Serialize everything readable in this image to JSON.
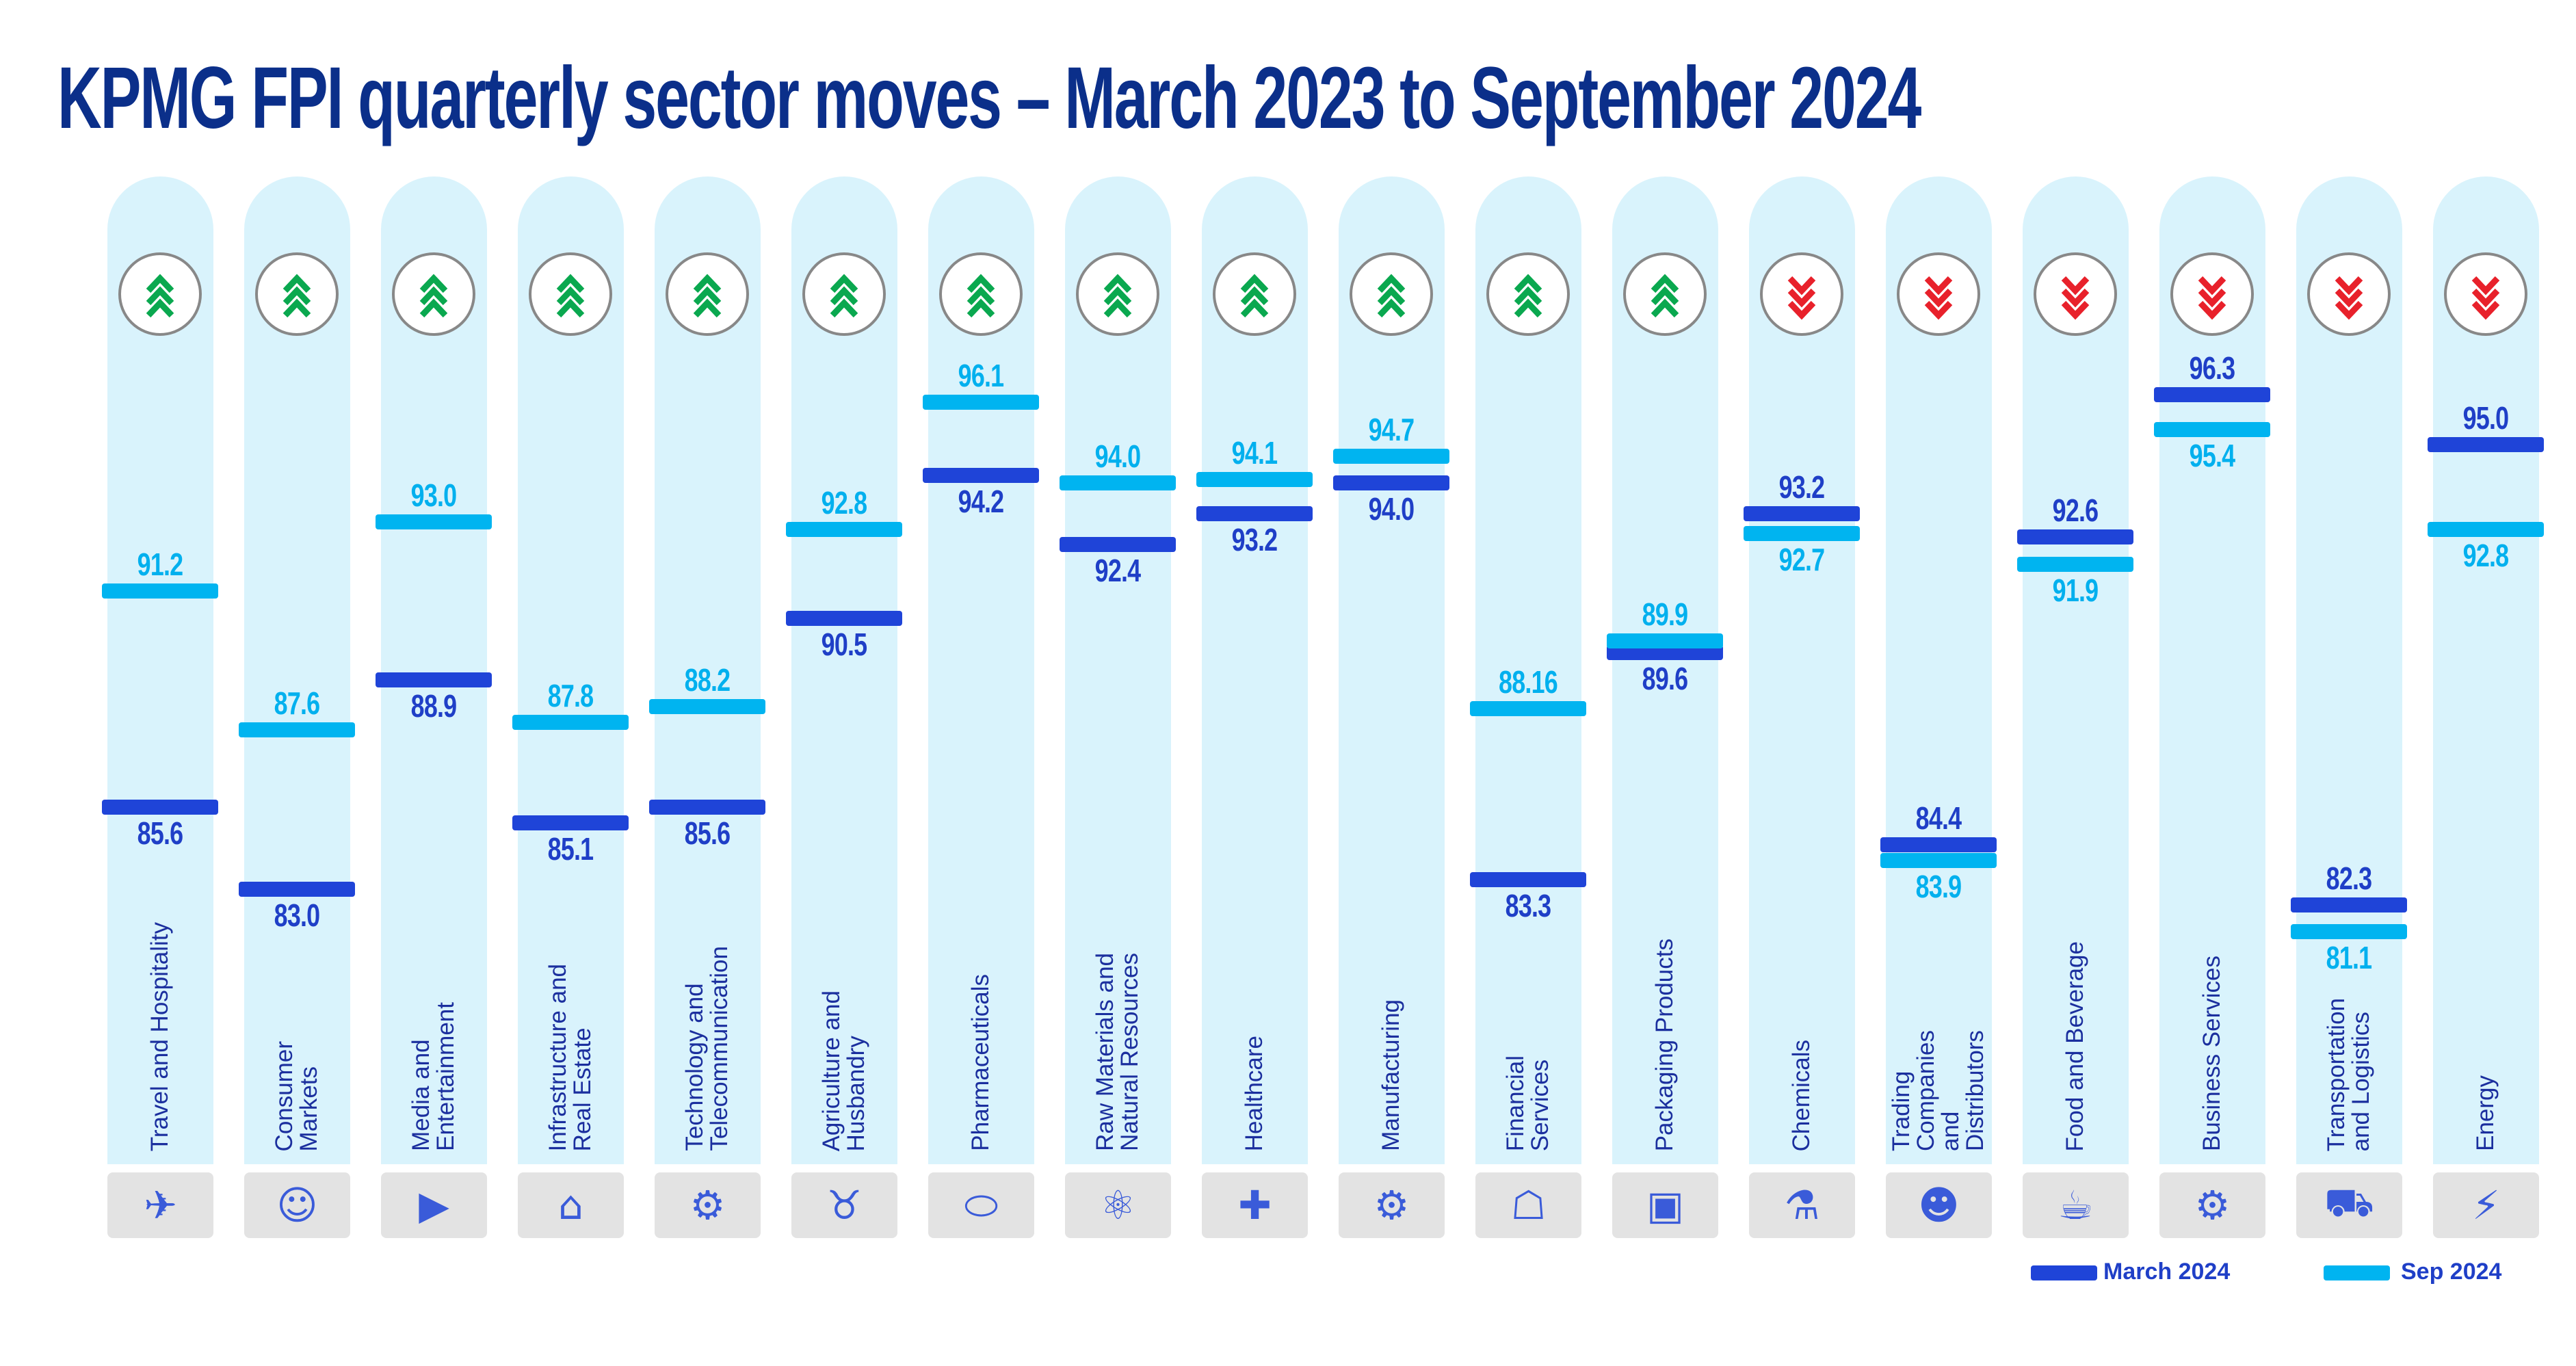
{
  "chart_data": {
    "type": "bar",
    "title": "KPMG FPI quarterly sector moves – March 2023 to September 2024",
    "series": [
      {
        "name": "March 2024",
        "color": "#1f44d8",
        "values": [
          85.6,
          83.0,
          88.9,
          85.1,
          85.6,
          90.5,
          94.2,
          92.4,
          93.2,
          94.0,
          83.3,
          89.6,
          93.2,
          84.4,
          92.6,
          96.3,
          82.3,
          95.0
        ],
        "labels": [
          "85.6",
          "83.0",
          "88.9",
          "85.1",
          "85.6",
          "90.5",
          "94.2",
          "92.4",
          "93.2",
          "94.0",
          "83.3",
          "89.6",
          "93.2",
          "84.4",
          "92.6",
          "96.3",
          "82.3",
          "95.0"
        ]
      },
      {
        "name": "Sep 2024",
        "color": "#00b4f0",
        "values": [
          91.2,
          87.6,
          93.0,
          87.8,
          88.2,
          92.8,
          96.1,
          94.0,
          94.1,
          94.7,
          88.16,
          89.9,
          92.7,
          83.9,
          91.9,
          95.4,
          81.1,
          92.8
        ],
        "labels": [
          "91.2",
          "87.6",
          "93.0",
          "87.8",
          "88.2",
          "92.8",
          "96.1",
          "94.0",
          "94.1",
          "94.7",
          "88.16",
          "89.9",
          "92.7",
          "83.9",
          "91.9",
          "95.4",
          "81.1",
          "92.8"
        ]
      }
    ],
    "categories": [
      "Travel and Hospitality",
      "Consumer\nMarkets",
      "Media and\nEntertainment",
      "Infrastructure and\nReal Estate",
      "Technology and\nTelecommunication",
      "Agriculture and\nHusbandry",
      "Pharmaceuticals",
      "Raw Materials and\nNatural Resources",
      "Healthcare",
      "Manufacturing",
      "Financial\nServices",
      "Packaging Products",
      "Chemicals",
      "Trading\nCompanies\nand\nDistributors",
      "Food and Beverage",
      "Business Services",
      "Transportation\nand Logistics",
      "Energy"
    ],
    "trend": [
      "up",
      "up",
      "up",
      "up",
      "up",
      "up",
      "up",
      "up",
      "up",
      "up",
      "up",
      "up",
      "down",
      "down",
      "down",
      "down",
      "down",
      "down"
    ],
    "icons": [
      "airplane-icon",
      "person-icon",
      "video-camera-icon",
      "house-icon",
      "tech-head-icon",
      "bull-icon",
      "pills-icon",
      "atom-icon",
      "medical-cross-hand-icon",
      "gear-wrench-icon",
      "bank-icon",
      "box-icon",
      "flask-icon",
      "group-icon",
      "burger-drink-icon",
      "gear-hand-icon",
      "truck-icon",
      "lightning-icon"
    ],
    "icon_glyphs": [
      "✈",
      "☺",
      "▶",
      "⌂",
      "⚙",
      "♉",
      "⬭",
      "⚛",
      "✚",
      "⚙",
      "☖",
      "▣",
      "⚗",
      "☻",
      "☕",
      "⚙",
      "⛟",
      "⚡"
    ],
    "legend": [
      "March 2024",
      "Sep 2024"
    ],
    "legend_position": "bottom-right",
    "colors": {
      "up": "#0aa84f",
      "down": "#e8212b",
      "column": "#d9f3fc"
    }
  }
}
